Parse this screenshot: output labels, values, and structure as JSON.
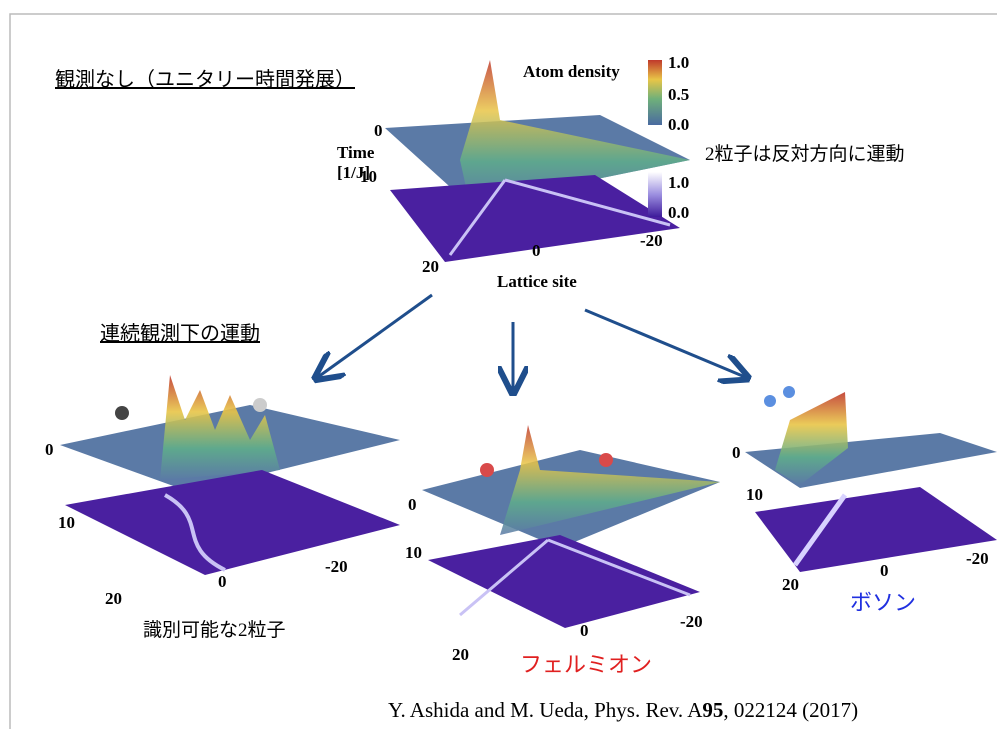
{
  "top": {
    "heading": "観測なし（ユニタリー時間発展）",
    "colorbar_title": "Atom density",
    "colorbar1_ticks": [
      "1.0",
      "0.5",
      "0.0"
    ],
    "colorbar2_ticks": [
      "1.0",
      "0.0"
    ],
    "time_start": "0",
    "time_label": "Time",
    "time_unit": "[1/J]",
    "time_end": "10",
    "x_left": "20",
    "x_mid": "0",
    "x_right": "-20",
    "x_label": "Lattice site",
    "note": "2粒子は反対方向に運動"
  },
  "bottom": {
    "heading": "連続観測下の運動",
    "panels": [
      {
        "t0": "0",
        "t10": "10",
        "x_left": "20",
        "x_mid": "0",
        "x_right": "-20",
        "caption": "識別可能な2粒子"
      },
      {
        "t0": "0",
        "t10": "10",
        "x_left": "20",
        "x_mid": "0",
        "x_right": "-20",
        "caption": "フェルミオン"
      },
      {
        "t0": "0",
        "t10": "10",
        "x_left": "20",
        "x_mid": "0",
        "x_right": "-20",
        "caption": "ボソン"
      }
    ]
  },
  "citation": {
    "prefix": "Y. Ashida and M. Ueda, Phys. Rev. A",
    "volume": "95",
    "suffix": ", 022124 (2017)"
  }
}
